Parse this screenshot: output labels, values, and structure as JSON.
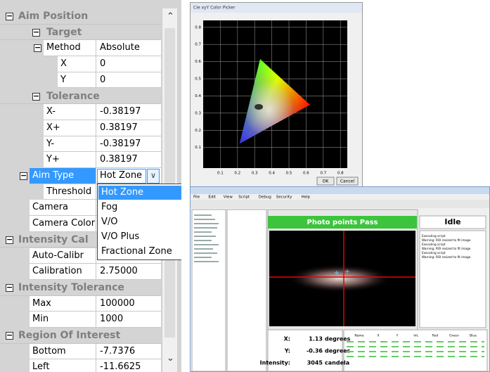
{
  "property_grid": [
    {
      "title": "Aim Position",
      "children": [
        {
          "title": "Target",
          "children": [
            {
              "label": "Method",
              "value": "Absolute",
              "children": [
                {
                  "label": "X",
                  "value": "0"
                },
                {
                  "label": "Y",
                  "value": "0"
                }
              ]
            }
          ]
        },
        {
          "title": "Tolerance",
          "children": [
            {
              "label": "X-",
              "value": "-0.38197"
            },
            {
              "label": "X+",
              "value": "0.38197"
            },
            {
              "label": "Y-",
              "value": "-0.38197"
            },
            {
              "label": "Y+",
              "value": "0.38197"
            }
          ]
        },
        {
          "label": "Aim Type",
          "value": "Hot Zone",
          "selected": true,
          "options": [
            "Hot Zone",
            "Fog",
            "V/O",
            "V/O Plus",
            "Fractional Zone"
          ],
          "children": [
            {
              "label": "Threshold"
            }
          ]
        },
        {
          "label": "Camera"
        },
        {
          "label": "Camera Color D"
        }
      ]
    },
    {
      "title": "Intensity Cal",
      "children": [
        {
          "label": "Auto-Calibr"
        },
        {
          "label": "Calibration",
          "value": "2.75000"
        }
      ]
    },
    {
      "title": "Intensity Tolerance",
      "children": [
        {
          "label": "Max",
          "value": "100000"
        },
        {
          "label": "Min",
          "value": "1000"
        }
      ]
    },
    {
      "title": "Region Of Interest",
      "children": [
        {
          "label": "Bottom",
          "value": "-7.7376"
        },
        {
          "label": "Left",
          "value": "-11.6625"
        }
      ]
    }
  ],
  "picker": {
    "title": "Cie xyY Color Picker",
    "xlim": [
      0,
      0.84
    ],
    "ylim": [
      -0.02,
      0.84
    ],
    "xticks": [
      0.1,
      0.2,
      0.3,
      0.4,
      0.5,
      0.6,
      0.7,
      0.8
    ],
    "yticks": [
      0.1,
      0.2,
      0.3,
      0.4,
      0.5,
      0.6,
      0.7,
      0.8
    ],
    "buttons": [
      "OK",
      "Cancel"
    ]
  },
  "app": {
    "menu": [
      "File",
      "Edit",
      "View",
      "Script",
      "Debug",
      "Security",
      "Help"
    ],
    "status": "Photo points Pass",
    "state": "Idle",
    "readouts": [
      {
        "label": "X:",
        "value": 1.13,
        "unit": "degrees"
      },
      {
        "label": "Y:",
        "value": -0.36,
        "unit": "degrees"
      },
      {
        "label": "Intensity:",
        "value": 3045,
        "unit": "candela"
      }
    ],
    "table_headers": [
      "Name",
      "X",
      "Y",
      "Int.",
      "Red",
      "Green",
      "Blue"
    ],
    "log": [
      "Executing script",
      "Warning: ROI resized to fit image.",
      "Executing script",
      "Warning: ROI resized to fit image.",
      "Executing script",
      "Warning: ROI resized to fit image."
    ]
  }
}
